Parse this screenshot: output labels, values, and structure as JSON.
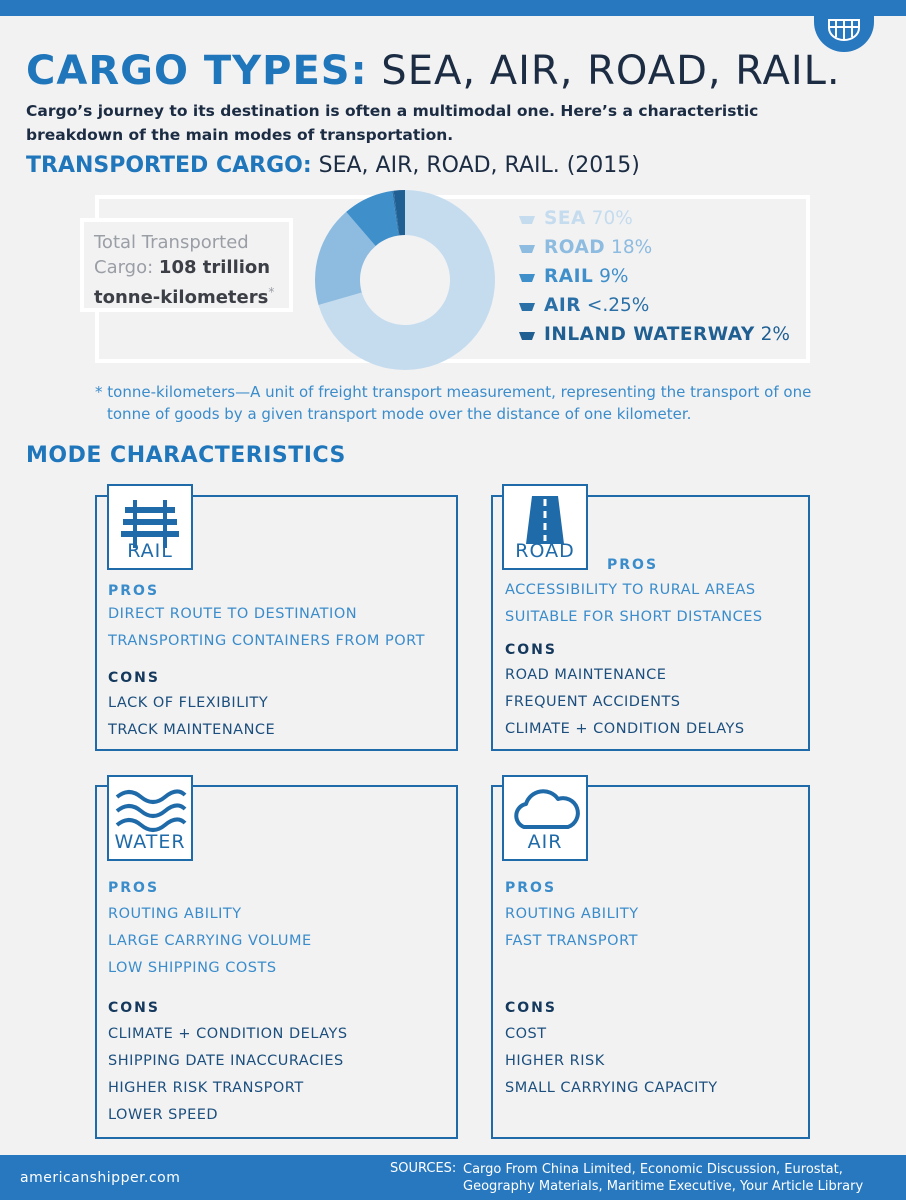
{
  "header": {
    "title_bold": "CARGO TYPES:",
    "title_rest": "SEA, AIR, ROAD, RAIL.",
    "intro": "Cargo’s journey to its destination is often a multimodal one. Here’s a characteristic breakdown of the main modes of transportation."
  },
  "chart_data": {
    "type": "pie",
    "title": "TRANSPORTED CARGO:",
    "subtitle": "SEA, AIR, ROAD, RAIL. (2015)",
    "categories": [
      "SEA",
      "ROAD",
      "RAIL",
      "AIR",
      "INLAND WATERWAY"
    ],
    "values": [
      70,
      18,
      9,
      0.25,
      2
    ],
    "value_labels": [
      "70%",
      "18%",
      "9%",
      "<.25%",
      "2%"
    ],
    "colors": [
      "#c5dcef",
      "#8dbce0",
      "#3f8fcb",
      "#2a6fa6",
      "#1f5f92"
    ],
    "donut": true
  },
  "total": {
    "label_line1": "Total Transported",
    "label_line2": "Cargo:",
    "value_line1": "108 trillion",
    "value_line2": "tonne-kilometers",
    "mark": "*"
  },
  "note": {
    "mark": "*",
    "text": "tonne-kilometers—A unit of freight transport measurement, representing the transport of one tonne of goods by a given transport mode over the distance of one kilometer."
  },
  "section_title": "MODE CHARACTERISTICS",
  "modes": [
    {
      "label": "RAIL",
      "pros_heading": "PROS",
      "pros": [
        "DIRECT ROUTE TO DESTINATION",
        "TRANSPORTING CONTAINERS FROM PORT"
      ],
      "cons_heading": "CONS",
      "cons": [
        "LACK OF FLEXIBILITY",
        "TRACK MAINTENANCE"
      ]
    },
    {
      "label": "ROAD",
      "pros_heading": "PROS",
      "pros": [
        "ACCESSIBILITY TO RURAL AREAS",
        "SUITABLE FOR SHORT DISTANCES"
      ],
      "cons_heading": "CONS",
      "cons": [
        "ROAD MAINTENANCE",
        "FREQUENT ACCIDENTS",
        "CLIMATE + CONDITION DELAYS"
      ]
    },
    {
      "label": "WATER",
      "pros_heading": "PROS",
      "pros": [
        "ROUTING ABILITY",
        "LARGE CARRYING VOLUME",
        "LOW SHIPPING COSTS"
      ],
      "cons_heading": "CONS",
      "cons": [
        "CLIMATE + CONDITION DELAYS",
        "SHIPPING DATE INACCURACIES",
        "HIGHER RISK TRANSPORT",
        "LOWER SPEED"
      ]
    },
    {
      "label": "AIR",
      "pros_heading": "PROS",
      "pros": [
        "ROUTING ABILITY",
        "FAST TRANSPORT"
      ],
      "cons_heading": "CONS",
      "cons": [
        "COST",
        "HIGHER RISK",
        "SMALL CARRYING CAPACITY"
      ]
    }
  ],
  "footer": {
    "site": "americanshipper.com",
    "sources_label": "SOURCES:",
    "sources": "Cargo From China Limited, Economic Discussion, Eurostat, Geography Materials, Maritime Executive, Your Article Library"
  }
}
